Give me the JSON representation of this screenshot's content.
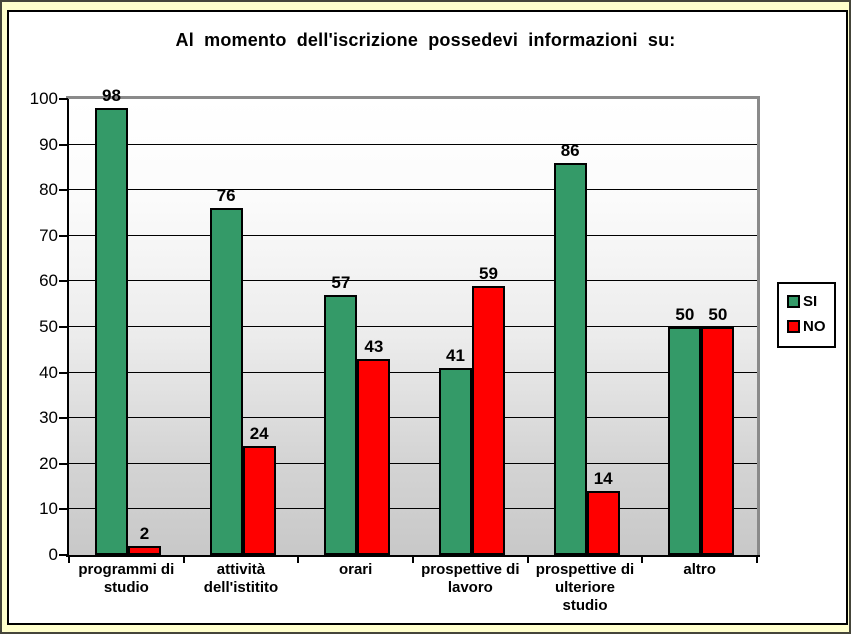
{
  "window": {
    "background_color": "#FFFFCC"
  },
  "chart_data": {
    "type": "bar",
    "title": "Al momento dell'iscrizione possedevi informazioni su:",
    "categories": [
      "programmi di\nstudio",
      "attività\ndell'istitito",
      "orari",
      "prospettive di\nlavoro",
      "prospettive di\nulteriore\nstudio",
      "altro"
    ],
    "series": [
      {
        "name": "SI",
        "color": "#349A68",
        "values": [
          98,
          76,
          57,
          41,
          86,
          50
        ]
      },
      {
        "name": "NO",
        "color": "#FF0000",
        "values": [
          2,
          24,
          43,
          59,
          14,
          50
        ]
      }
    ],
    "ylim": [
      0,
      100
    ],
    "yticks": [
      0,
      10,
      20,
      30,
      40,
      50,
      60,
      70,
      80,
      90,
      100
    ],
    "grid": true,
    "value_labels": true,
    "legend_position": "right",
    "plot_background": "white-to-gray gradient"
  }
}
